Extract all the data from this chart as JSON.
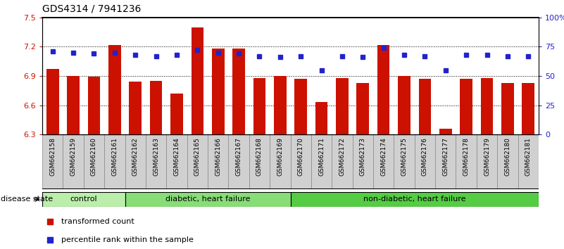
{
  "title": "GDS4314 / 7941236",
  "samples": [
    "GSM662158",
    "GSM662159",
    "GSM662160",
    "GSM662161",
    "GSM662162",
    "GSM662163",
    "GSM662164",
    "GSM662165",
    "GSM662166",
    "GSM662167",
    "GSM662168",
    "GSM662169",
    "GSM662170",
    "GSM662171",
    "GSM662172",
    "GSM662173",
    "GSM662174",
    "GSM662175",
    "GSM662176",
    "GSM662177",
    "GSM662178",
    "GSM662179",
    "GSM662180",
    "GSM662181"
  ],
  "bar_values": [
    6.97,
    6.9,
    6.89,
    7.22,
    6.84,
    6.85,
    6.72,
    7.4,
    7.18,
    7.18,
    6.88,
    6.9,
    6.87,
    6.63,
    6.88,
    6.83,
    7.22,
    6.9,
    6.87,
    6.36,
    6.87,
    6.88,
    6.83,
    6.83
  ],
  "percentile_values": [
    71,
    70,
    69,
    70,
    68,
    67,
    68,
    72,
    70,
    69,
    67,
    66,
    67,
    55,
    67,
    66,
    74,
    68,
    67,
    55,
    68,
    68,
    67,
    67
  ],
  "ylim_left": [
    6.3,
    7.5
  ],
  "ylim_right": [
    0,
    100
  ],
  "yticks_left": [
    6.3,
    6.6,
    6.9,
    7.2,
    7.5
  ],
  "yticks_right": [
    0,
    25,
    50,
    75,
    100
  ],
  "ytick_labels_left": [
    "6.3",
    "6.6",
    "6.9",
    "7.2",
    "7.5"
  ],
  "ytick_labels_right": [
    "0",
    "25",
    "50",
    "75",
    "100%"
  ],
  "bar_color": "#cc1100",
  "dot_color": "#2222cc",
  "bar_bottom": 6.3,
  "groups": [
    {
      "label": "control",
      "start": 0,
      "end": 4,
      "color": "#bbeeaa"
    },
    {
      "label": "diabetic, heart failure",
      "start": 4,
      "end": 12,
      "color": "#88dd77"
    },
    {
      "label": "non-diabetic, heart failure",
      "start": 12,
      "end": 24,
      "color": "#55cc44"
    }
  ],
  "disease_state_label": "disease state",
  "legend_bar_label": "transformed count",
  "legend_dot_label": "percentile rank within the sample",
  "left_axis_color": "#cc1100",
  "right_axis_color": "#2222cc",
  "xtick_bg_color": "#d0d0d0",
  "xtick_border_color": "#888888"
}
